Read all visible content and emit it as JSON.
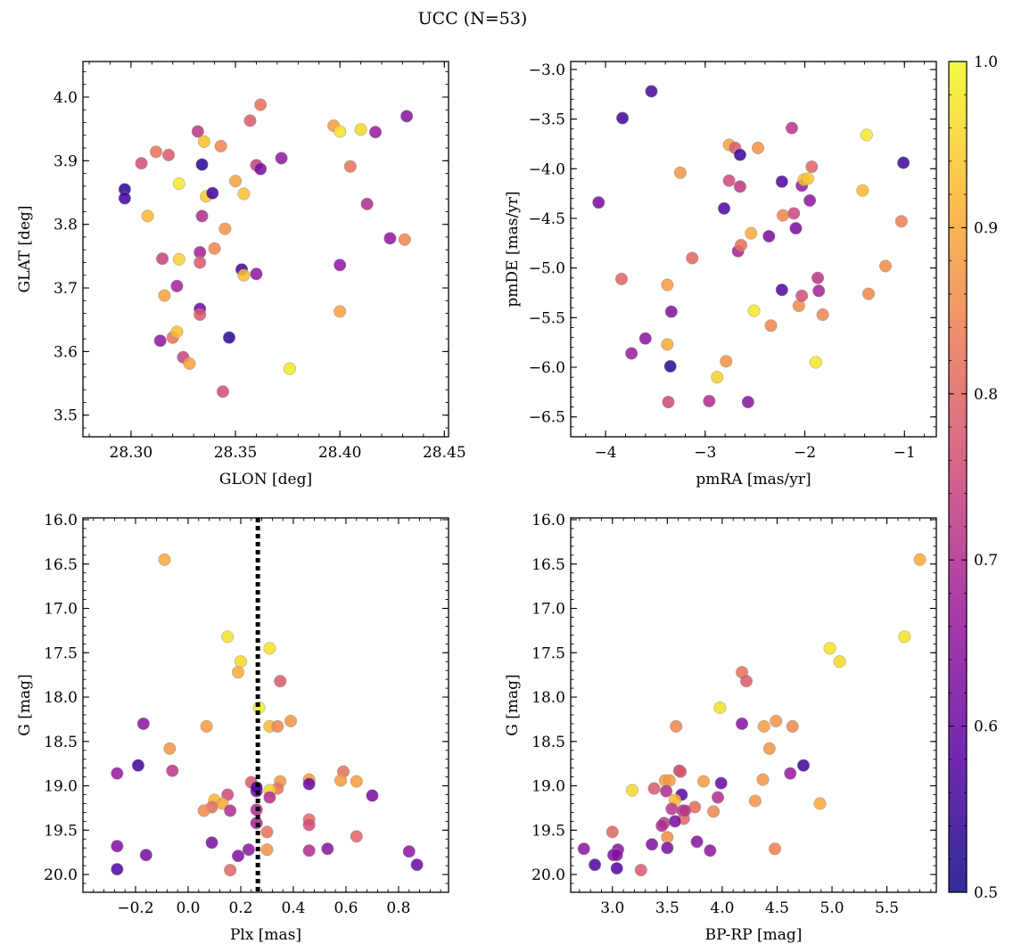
{
  "figure": {
    "title": "UCC (N=53)"
  },
  "colorbar": {
    "min": 0.5,
    "max": 1.0,
    "ticks": [
      "0.5",
      "0.6",
      "0.7",
      "0.8",
      "0.9",
      "1.0"
    ],
    "colormap": "plasma",
    "stops": [
      "#0d0887",
      "#5b02a3",
      "#9a179b",
      "#cb4678",
      "#eb7852",
      "#fbb32f",
      "#f0f921"
    ]
  },
  "chart_data": [
    {
      "type": "scatter",
      "name": "GLON vs GLAT",
      "xlabel": "GLON [deg]",
      "ylabel": "GLAT [deg]",
      "xlim": [
        28.277,
        28.452
      ],
      "ylim": [
        3.466,
        4.056
      ],
      "xticks": [
        "28.30",
        "28.35",
        "28.40",
        "28.45"
      ],
      "yticks": [
        "3.5",
        "3.6",
        "3.7",
        "3.8",
        "3.9",
        "4.0"
      ],
      "grid": false,
      "points": [
        [
          28.297,
          3.855,
          0.53
        ],
        [
          28.297,
          3.841,
          0.55
        ],
        [
          28.305,
          3.896,
          0.76
        ],
        [
          28.308,
          3.813,
          0.92
        ],
        [
          28.312,
          3.914,
          0.82
        ],
        [
          28.314,
          3.617,
          0.65
        ],
        [
          28.315,
          3.746,
          0.74
        ],
        [
          28.316,
          3.688,
          0.89
        ],
        [
          28.318,
          3.909,
          0.78
        ],
        [
          28.32,
          3.622,
          0.82
        ],
        [
          28.322,
          3.703,
          0.68
        ],
        [
          28.322,
          3.631,
          0.93
        ],
        [
          28.323,
          3.864,
          0.98
        ],
        [
          28.323,
          3.745,
          0.95
        ],
        [
          28.325,
          3.591,
          0.74
        ],
        [
          28.328,
          3.581,
          0.89
        ],
        [
          28.332,
          3.946,
          0.72
        ],
        [
          28.333,
          3.756,
          0.68
        ],
        [
          28.333,
          3.74,
          0.78
        ],
        [
          28.333,
          3.667,
          0.6
        ],
        [
          28.333,
          3.658,
          0.78
        ],
        [
          28.334,
          3.813,
          0.7
        ],
        [
          28.334,
          3.894,
          0.53
        ],
        [
          28.335,
          3.93,
          0.93
        ],
        [
          28.336,
          3.844,
          0.94
        ],
        [
          28.339,
          3.849,
          0.55
        ],
        [
          28.34,
          3.762,
          0.85
        ],
        [
          28.343,
          3.923,
          0.85
        ],
        [
          28.344,
          3.537,
          0.76
        ],
        [
          28.345,
          3.793,
          0.87
        ],
        [
          28.347,
          3.622,
          0.53
        ],
        [
          28.35,
          3.868,
          0.89
        ],
        [
          28.353,
          3.729,
          0.55
        ],
        [
          28.354,
          3.848,
          0.93
        ],
        [
          28.354,
          3.72,
          0.93
        ],
        [
          28.357,
          3.963,
          0.78
        ],
        [
          28.36,
          3.893,
          0.74
        ],
        [
          28.36,
          3.722,
          0.65
        ],
        [
          28.362,
          3.988,
          0.82
        ],
        [
          28.362,
          3.887,
          0.62
        ],
        [
          28.372,
          3.904,
          0.65
        ],
        [
          28.376,
          3.573,
          0.98
        ],
        [
          28.397,
          3.955,
          0.88
        ],
        [
          28.4,
          3.946,
          0.97
        ],
        [
          28.4,
          3.736,
          0.65
        ],
        [
          28.4,
          3.663,
          0.89
        ],
        [
          28.405,
          3.891,
          0.82
        ],
        [
          28.41,
          3.949,
          0.96
        ],
        [
          28.413,
          3.832,
          0.7
        ],
        [
          28.417,
          3.945,
          0.66
        ],
        [
          28.424,
          3.778,
          0.65
        ],
        [
          28.431,
          3.776,
          0.85
        ],
        [
          28.432,
          3.97,
          0.64
        ]
      ]
    },
    {
      "type": "scatter",
      "name": "pmRA vs pmDE",
      "xlabel": "pmRA [mas/yr]",
      "ylabel": "pmDE [mas/yr]",
      "xlim": [
        -4.35,
        -0.68
      ],
      "ylim": [
        -6.7,
        -2.92
      ],
      "xticks": [
        "−4",
        "−3",
        "−2",
        "−1"
      ],
      "yticks": [
        "−3.0",
        "−3.5",
        "−4.0",
        "−4.5",
        "−5.0",
        "−5.5",
        "−6.0",
        "−6.5"
      ],
      "grid": false,
      "points": [
        [
          -4.07,
          -4.34,
          0.62
        ],
        [
          -3.84,
          -5.11,
          0.8
        ],
        [
          -3.83,
          -3.49,
          0.55
        ],
        [
          -3.74,
          -5.86,
          0.67
        ],
        [
          -3.6,
          -5.71,
          0.64
        ],
        [
          -3.54,
          -3.22,
          0.57
        ],
        [
          -3.38,
          -5.17,
          0.88
        ],
        [
          -3.38,
          -5.77,
          0.9
        ],
        [
          -3.37,
          -6.35,
          0.75
        ],
        [
          -3.35,
          -5.99,
          0.53
        ],
        [
          -3.34,
          -5.44,
          0.63
        ],
        [
          -3.25,
          -4.04,
          0.87
        ],
        [
          -3.13,
          -4.9,
          0.8
        ],
        [
          -2.96,
          -6.34,
          0.7
        ],
        [
          -2.88,
          -6.1,
          0.95
        ],
        [
          -2.81,
          -4.4,
          0.57
        ],
        [
          -2.79,
          -5.94,
          0.87
        ],
        [
          -2.76,
          -3.76,
          0.89
        ],
        [
          -2.76,
          -4.12,
          0.75
        ],
        [
          -2.7,
          -3.79,
          0.78
        ],
        [
          -2.67,
          -4.83,
          0.68
        ],
        [
          -2.65,
          -3.86,
          0.55
        ],
        [
          -2.65,
          -4.18,
          0.72
        ],
        [
          -2.64,
          -4.77,
          0.82
        ],
        [
          -2.57,
          -6.35,
          0.64
        ],
        [
          -2.54,
          -4.65,
          0.9
        ],
        [
          -2.51,
          -5.43,
          0.98
        ],
        [
          -2.47,
          -3.79,
          0.87
        ],
        [
          -2.36,
          -4.68,
          0.62
        ],
        [
          -2.34,
          -5.58,
          0.85
        ],
        [
          -2.23,
          -4.13,
          0.57
        ],
        [
          -2.23,
          -5.22,
          0.57
        ],
        [
          -2.22,
          -4.47,
          0.85
        ],
        [
          -2.13,
          -3.59,
          0.72
        ],
        [
          -2.11,
          -4.45,
          0.75
        ],
        [
          -2.09,
          -4.6,
          0.62
        ],
        [
          -2.06,
          -5.38,
          0.86
        ],
        [
          -2.03,
          -4.17,
          0.66
        ],
        [
          -2.03,
          -5.28,
          0.76
        ],
        [
          -2.01,
          -4.11,
          0.93
        ],
        [
          -1.97,
          -4.1,
          0.94
        ],
        [
          -1.95,
          -4.32,
          0.65
        ],
        [
          -1.93,
          -3.98,
          0.8
        ],
        [
          -1.89,
          -5.95,
          0.98
        ],
        [
          -1.87,
          -5.1,
          0.72
        ],
        [
          -1.86,
          -5.23,
          0.68
        ],
        [
          -1.82,
          -5.47,
          0.85
        ],
        [
          -1.42,
          -4.22,
          0.92
        ],
        [
          -1.38,
          -3.66,
          0.98
        ],
        [
          -1.36,
          -5.26,
          0.85
        ],
        [
          -1.19,
          -4.98,
          0.86
        ],
        [
          -1.03,
          -4.53,
          0.84
        ],
        [
          -1.01,
          -3.94,
          0.55
        ]
      ]
    },
    {
      "type": "scatter",
      "name": "Plx vs G",
      "xlabel": "Plx [mas]",
      "ylabel": "G [mag]",
      "xlim": [
        -0.4,
        0.99
      ],
      "ylim": [
        20.2,
        15.98
      ],
      "xticks": [
        "−0.2",
        "0.0",
        "0.2",
        "0.4",
        "0.6",
        "0.8"
      ],
      "yticks": [
        "16.0",
        "16.5",
        "17.0",
        "17.5",
        "18.0",
        "18.5",
        "19.0",
        "19.5",
        "20.0"
      ],
      "grid": false,
      "vline": 0.265,
      "points": [
        [
          -0.09,
          16.45,
          0.9
        ],
        [
          0.15,
          17.32,
          0.97
        ],
        [
          0.31,
          17.45,
          0.97
        ],
        [
          0.2,
          17.6,
          0.96
        ],
        [
          0.19,
          17.72,
          0.9
        ],
        [
          0.35,
          17.82,
          0.78
        ],
        [
          0.27,
          18.12,
          0.99
        ],
        [
          0.39,
          18.27,
          0.87
        ],
        [
          -0.17,
          18.3,
          0.64
        ],
        [
          0.07,
          18.33,
          0.88
        ],
        [
          0.31,
          18.33,
          0.92
        ],
        [
          0.34,
          18.33,
          0.85
        ],
        [
          -0.07,
          18.58,
          0.87
        ],
        [
          -0.19,
          18.77,
          0.55
        ],
        [
          -0.27,
          18.86,
          0.66
        ],
        [
          -0.06,
          18.83,
          0.72
        ],
        [
          0.59,
          18.84,
          0.82
        ],
        [
          0.46,
          18.93,
          0.88
        ],
        [
          0.58,
          18.94,
          0.88
        ],
        [
          0.35,
          18.95,
          0.87
        ],
        [
          0.64,
          18.95,
          0.88
        ],
        [
          0.24,
          18.96,
          0.78
        ],
        [
          0.46,
          18.98,
          0.6
        ],
        [
          0.34,
          19.03,
          0.82
        ],
        [
          0.31,
          19.05,
          0.96
        ],
        [
          0.26,
          19.06,
          0.6
        ],
        [
          0.15,
          19.1,
          0.75
        ],
        [
          0.31,
          19.13,
          0.7
        ],
        [
          0.7,
          19.11,
          0.62
        ],
        [
          0.1,
          19.16,
          0.92
        ],
        [
          0.13,
          19.2,
          0.9
        ],
        [
          0.09,
          19.24,
          0.81
        ],
        [
          0.06,
          19.28,
          0.86
        ],
        [
          0.16,
          19.28,
          0.7
        ],
        [
          0.26,
          19.27,
          0.7
        ],
        [
          0.46,
          19.38,
          0.81
        ],
        [
          0.26,
          19.42,
          0.68
        ],
        [
          0.46,
          19.44,
          0.76
        ],
        [
          0.3,
          19.52,
          0.82
        ],
        [
          0.64,
          19.57,
          0.8
        ],
        [
          0.09,
          19.64,
          0.62
        ],
        [
          -0.27,
          19.68,
          0.63
        ],
        [
          0.53,
          19.71,
          0.64
        ],
        [
          0.23,
          19.72,
          0.65
        ],
        [
          0.3,
          19.72,
          0.87
        ],
        [
          0.46,
          19.73,
          0.7
        ],
        [
          0.84,
          19.74,
          0.65
        ],
        [
          0.19,
          19.79,
          0.63
        ],
        [
          -0.16,
          19.78,
          0.62
        ],
        [
          0.16,
          19.95,
          0.8
        ],
        [
          -0.27,
          19.94,
          0.57
        ],
        [
          0.87,
          19.89,
          0.6
        ],
        [
          0.26,
          19.02,
          0.58
        ]
      ]
    },
    {
      "type": "scatter",
      "name": "BP-RP vs G",
      "xlabel": "BP-RP [mag]",
      "ylabel": "G [mag]",
      "xlim": [
        2.62,
        5.95
      ],
      "ylim": [
        20.2,
        15.98
      ],
      "xticks": [
        "3.0",
        "3.5",
        "4.0",
        "4.5",
        "5.0",
        "5.5"
      ],
      "yticks": [
        "16.0",
        "16.5",
        "17.0",
        "17.5",
        "18.0",
        "18.5",
        "19.0",
        "19.5",
        "20.0"
      ],
      "grid": false,
      "points": [
        [
          5.8,
          16.45,
          0.9
        ],
        [
          5.66,
          17.32,
          0.97
        ],
        [
          4.98,
          17.45,
          0.97
        ],
        [
          5.07,
          17.6,
          0.96
        ],
        [
          4.18,
          17.72,
          0.82
        ],
        [
          4.22,
          17.82,
          0.78
        ],
        [
          3.98,
          18.12,
          0.97
        ],
        [
          4.49,
          18.27,
          0.87
        ],
        [
          4.18,
          18.3,
          0.64
        ],
        [
          3.58,
          18.33,
          0.85
        ],
        [
          4.38,
          18.33,
          0.88
        ],
        [
          4.64,
          18.33,
          0.85
        ],
        [
          4.43,
          18.58,
          0.87
        ],
        [
          4.74,
          18.77,
          0.55
        ],
        [
          4.62,
          18.86,
          0.66
        ],
        [
          3.61,
          18.83,
          0.72
        ],
        [
          3.62,
          18.84,
          0.78
        ],
        [
          4.37,
          18.93,
          0.87
        ],
        [
          3.48,
          18.94,
          0.88
        ],
        [
          3.52,
          18.94,
          0.88
        ],
        [
          3.83,
          18.95,
          0.88
        ],
        [
          3.99,
          18.97,
          0.6
        ],
        [
          3.38,
          19.03,
          0.78
        ],
        [
          3.18,
          19.05,
          0.96
        ],
        [
          3.49,
          19.06,
          0.7
        ],
        [
          3.63,
          19.1,
          0.58
        ],
        [
          3.96,
          19.13,
          0.7
        ],
        [
          3.57,
          19.16,
          0.92
        ],
        [
          4.3,
          19.17,
          0.87
        ],
        [
          4.89,
          19.2,
          0.9
        ],
        [
          3.75,
          19.24,
          0.81
        ],
        [
          3.54,
          19.26,
          0.72
        ],
        [
          3.64,
          19.28,
          0.7
        ],
        [
          3.92,
          19.29,
          0.85
        ],
        [
          3.65,
          19.37,
          0.8
        ],
        [
          3.47,
          19.42,
          0.72
        ],
        [
          3.57,
          19.4,
          0.62
        ],
        [
          3.5,
          19.58,
          0.86
        ],
        [
          3.0,
          19.52,
          0.8
        ],
        [
          3.77,
          19.63,
          0.64
        ],
        [
          3.36,
          19.66,
          0.63
        ],
        [
          3.5,
          19.7,
          0.62
        ],
        [
          3.05,
          19.72,
          0.64
        ],
        [
          4.48,
          19.71,
          0.84
        ],
        [
          2.74,
          19.71,
          0.65
        ],
        [
          3.89,
          19.73,
          0.65
        ],
        [
          3.01,
          19.78,
          0.62
        ],
        [
          3.04,
          19.78,
          0.64
        ],
        [
          2.84,
          19.89,
          0.57
        ],
        [
          3.04,
          19.93,
          0.57
        ],
        [
          3.26,
          19.95,
          0.78
        ],
        [
          3.45,
          19.45,
          0.7
        ],
        [
          3.66,
          19.28,
          0.72
        ]
      ]
    }
  ]
}
